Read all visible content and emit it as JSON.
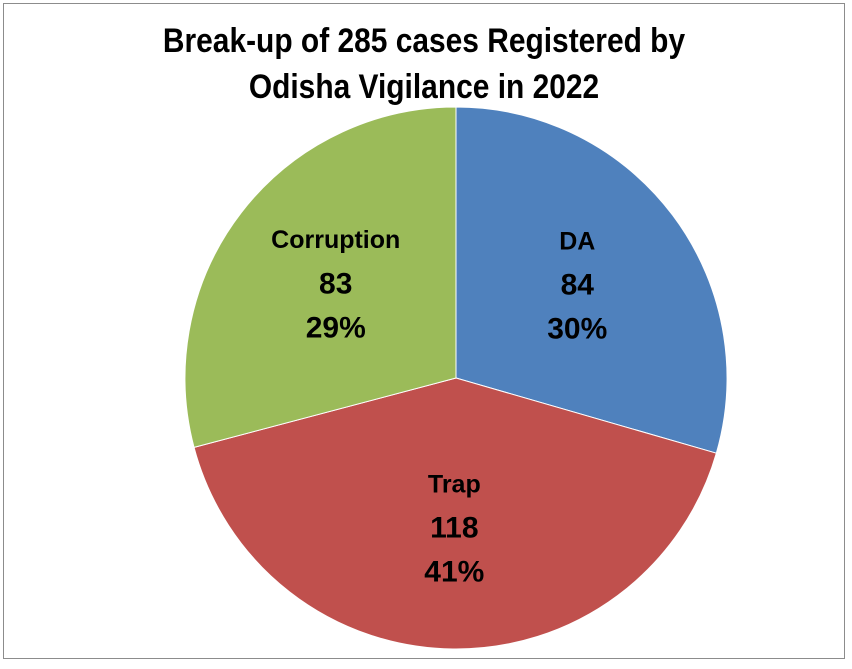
{
  "chart_data": {
    "type": "pie",
    "title_lines": [
      "Break-up of 285 cases Registered by",
      "Odisha Vigilance in 2022"
    ],
    "slices": [
      {
        "name": "DA",
        "value": 84,
        "percent": "30%",
        "color": "#4f81bd"
      },
      {
        "name": "Trap",
        "value": 118,
        "percent": "41%",
        "color": "#c0504d"
      },
      {
        "name": "Corruption",
        "value": 83,
        "percent": "29%",
        "color": "#9bbb59"
      }
    ],
    "legend": "none"
  }
}
